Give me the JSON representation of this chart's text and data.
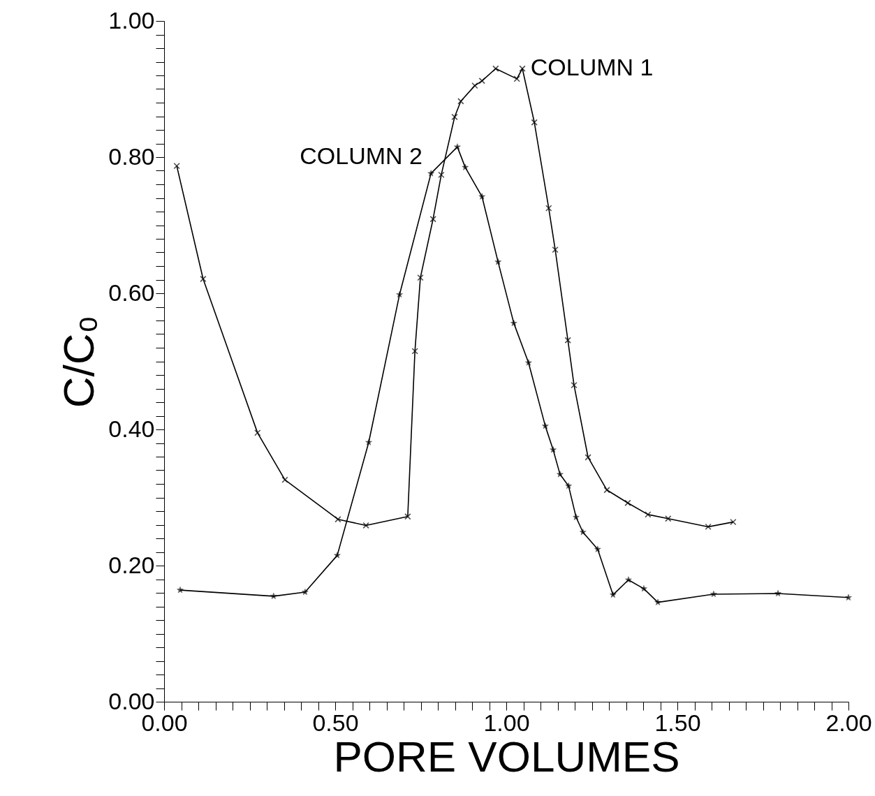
{
  "chart_data": {
    "type": "line",
    "xlabel": "PORE VOLUMES",
    "ylabel": "C/C₀",
    "grid": false,
    "line_style": "solid",
    "xlim": [
      0,
      2
    ],
    "ylim": [
      0,
      1
    ],
    "xticks": [
      {
        "value": 0,
        "label": "0.00"
      },
      {
        "value": 0.05,
        "label": null
      },
      {
        "value": 0.1,
        "label": null
      },
      {
        "value": 0.15,
        "label": null
      },
      {
        "value": 0.2,
        "label": null
      },
      {
        "value": 0.25,
        "label": null
      },
      {
        "value": 0.3,
        "label": null
      },
      {
        "value": 0.35,
        "label": null
      },
      {
        "value": 0.4,
        "label": null
      },
      {
        "value": 0.45,
        "label": null
      },
      {
        "value": 0.5,
        "label": "0.50"
      },
      {
        "value": 0.55,
        "label": null
      },
      {
        "value": 0.6,
        "label": null
      },
      {
        "value": 0.65,
        "label": null
      },
      {
        "value": 0.7,
        "label": null
      },
      {
        "value": 0.75,
        "label": null
      },
      {
        "value": 0.8,
        "label": null
      },
      {
        "value": 0.85,
        "label": null
      },
      {
        "value": 0.9,
        "label": null
      },
      {
        "value": 0.95,
        "label": null
      },
      {
        "value": 1,
        "label": "1.00"
      },
      {
        "value": 1.05,
        "label": null
      },
      {
        "value": 1.1,
        "label": null
      },
      {
        "value": 1.15,
        "label": null
      },
      {
        "value": 1.2,
        "label": null
      },
      {
        "value": 1.25,
        "label": null
      },
      {
        "value": 1.3,
        "label": null
      },
      {
        "value": 1.35,
        "label": null
      },
      {
        "value": 1.4,
        "label": null
      },
      {
        "value": 1.45,
        "label": null
      },
      {
        "value": 1.5,
        "label": "1.50"
      },
      {
        "value": 1.55,
        "label": null
      },
      {
        "value": 1.6,
        "label": null
      },
      {
        "value": 1.65,
        "label": null
      },
      {
        "value": 1.7,
        "label": null
      },
      {
        "value": 1.75,
        "label": null
      },
      {
        "value": 1.8,
        "label": null
      },
      {
        "value": 1.85,
        "label": null
      },
      {
        "value": 1.9,
        "label": null
      },
      {
        "value": 1.95,
        "label": null
      },
      {
        "value": 2,
        "label": "2.00"
      }
    ],
    "yticks": [
      {
        "value": 0,
        "label": "0.00"
      },
      {
        "value": 0.02,
        "label": null
      },
      {
        "value": 0.04,
        "label": null
      },
      {
        "value": 0.06,
        "label": null
      },
      {
        "value": 0.08,
        "label": null
      },
      {
        "value": 0.1,
        "label": null
      },
      {
        "value": 0.12,
        "label": null
      },
      {
        "value": 0.14,
        "label": null
      },
      {
        "value": 0.16,
        "label": null
      },
      {
        "value": 0.18,
        "label": null
      },
      {
        "value": 0.2,
        "label": "0.20"
      },
      {
        "value": 0.22,
        "label": null
      },
      {
        "value": 0.24,
        "label": null
      },
      {
        "value": 0.26,
        "label": null
      },
      {
        "value": 0.28,
        "label": null
      },
      {
        "value": 0.3,
        "label": null
      },
      {
        "value": 0.32,
        "label": null
      },
      {
        "value": 0.34,
        "label": null
      },
      {
        "value": 0.36,
        "label": null
      },
      {
        "value": 0.38,
        "label": null
      },
      {
        "value": 0.4,
        "label": "0.40"
      },
      {
        "value": 0.42,
        "label": null
      },
      {
        "value": 0.44,
        "label": null
      },
      {
        "value": 0.46,
        "label": null
      },
      {
        "value": 0.48,
        "label": null
      },
      {
        "value": 0.5,
        "label": null
      },
      {
        "value": 0.52,
        "label": null
      },
      {
        "value": 0.54,
        "label": null
      },
      {
        "value": 0.56,
        "label": null
      },
      {
        "value": 0.58,
        "label": null
      },
      {
        "value": 0.6,
        "label": "0.60"
      },
      {
        "value": 0.62,
        "label": null
      },
      {
        "value": 0.64,
        "label": null
      },
      {
        "value": 0.66,
        "label": null
      },
      {
        "value": 0.68,
        "label": null
      },
      {
        "value": 0.7,
        "label": null
      },
      {
        "value": 0.72,
        "label": null
      },
      {
        "value": 0.74,
        "label": null
      },
      {
        "value": 0.76,
        "label": null
      },
      {
        "value": 0.78,
        "label": null
      },
      {
        "value": 0.8,
        "label": "0.80"
      },
      {
        "value": 0.82,
        "label": null
      },
      {
        "value": 0.84,
        "label": null
      },
      {
        "value": 0.86,
        "label": null
      },
      {
        "value": 0.88,
        "label": null
      },
      {
        "value": 0.9,
        "label": null
      },
      {
        "value": 0.92,
        "label": null
      },
      {
        "value": 0.94,
        "label": null
      },
      {
        "value": 0.96,
        "label": null
      },
      {
        "value": 0.98,
        "label": null
      },
      {
        "value": 1,
        "label": "1.00"
      }
    ],
    "series": [
      {
        "name": "COLUMN 1",
        "color": "#000000",
        "marker": "cross",
        "x": [
          0.037,
          0.114,
          0.273,
          0.353,
          0.508,
          0.59,
          0.712,
          0.733,
          0.749,
          0.786,
          0.81,
          0.849,
          0.867,
          0.908,
          0.929,
          0.969,
          1.031,
          1.047,
          1.082,
          1.124,
          1.143,
          1.18,
          1.198,
          1.239,
          1.294,
          1.355,
          1.414,
          1.473,
          1.59,
          1.663
        ],
        "values": [
          0.787,
          0.621,
          0.395,
          0.326,
          0.268,
          0.259,
          0.272,
          0.515,
          0.623,
          0.709,
          0.774,
          0.859,
          0.882,
          0.905,
          0.912,
          0.93,
          0.915,
          0.93,
          0.851,
          0.725,
          0.664,
          0.531,
          0.465,
          0.359,
          0.311,
          0.292,
          0.275,
          0.269,
          0.257,
          0.264
        ]
      },
      {
        "name": "COLUMN 2",
        "color": "#000000",
        "marker": "star",
        "x": [
          0.047,
          0.32,
          0.412,
          0.506,
          0.598,
          0.688,
          0.78,
          0.857,
          0.88,
          0.929,
          0.976,
          1.022,
          1.065,
          1.114,
          1.137,
          1.157,
          1.182,
          1.204,
          1.224,
          1.267,
          1.312,
          1.357,
          1.402,
          1.443,
          1.606,
          1.794,
          2.0
        ],
        "values": [
          0.164,
          0.155,
          0.161,
          0.215,
          0.381,
          0.598,
          0.776,
          0.815,
          0.785,
          0.742,
          0.646,
          0.556,
          0.498,
          0.405,
          0.37,
          0.334,
          0.317,
          0.271,
          0.249,
          0.224,
          0.157,
          0.179,
          0.166,
          0.146,
          0.158,
          0.159,
          0.153
        ]
      }
    ]
  }
}
